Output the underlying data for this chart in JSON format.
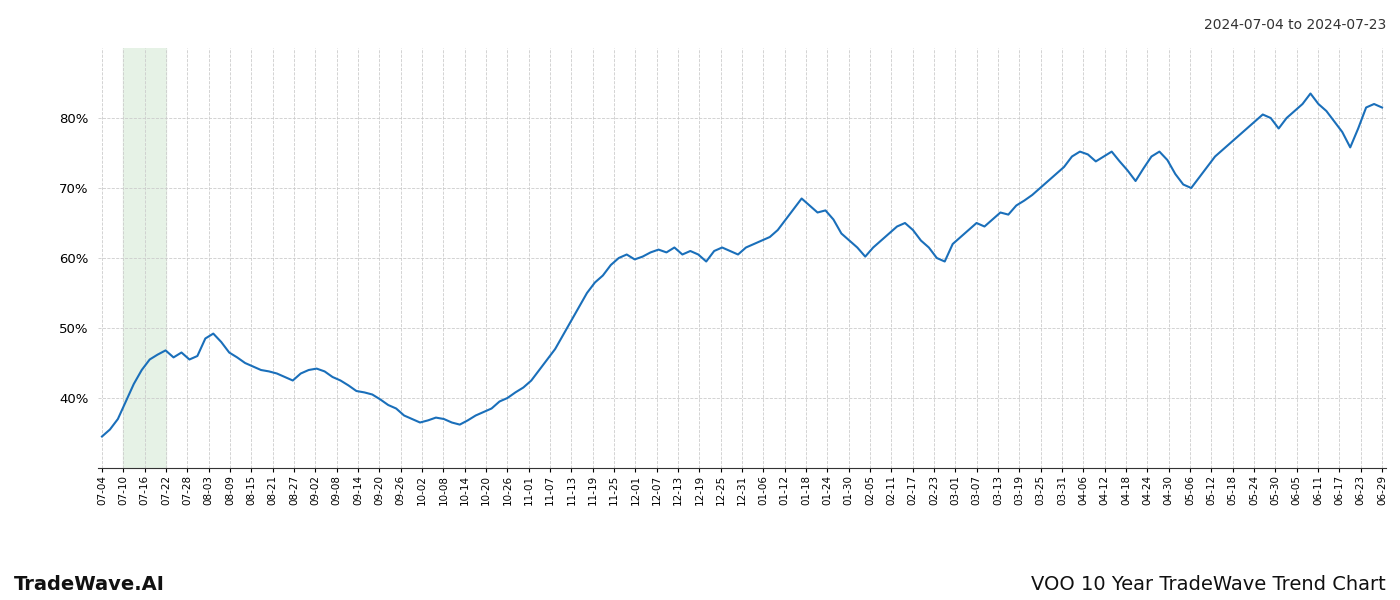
{
  "title_date_range": "2024-07-04 to 2024-07-23",
  "footer_left": "TradeWave.AI",
  "footer_right": "VOO 10 Year TradeWave Trend Chart",
  "line_color": "#1a6fba",
  "line_width": 1.5,
  "background_color": "#ffffff",
  "grid_color": "#cccccc",
  "highlight_color": "#e6f2e6",
  "ylim": [
    30,
    90
  ],
  "yticks": [
    40,
    50,
    60,
    70,
    80
  ],
  "x_labels": [
    "07-04",
    "07-10",
    "07-16",
    "07-22",
    "07-28",
    "08-03",
    "08-09",
    "08-15",
    "08-21",
    "08-27",
    "09-02",
    "09-08",
    "09-14",
    "09-20",
    "09-26",
    "10-02",
    "10-08",
    "10-14",
    "10-20",
    "10-26",
    "11-01",
    "11-07",
    "11-13",
    "11-19",
    "11-25",
    "12-01",
    "12-07",
    "12-13",
    "12-19",
    "12-25",
    "12-31",
    "01-06",
    "01-12",
    "01-18",
    "01-24",
    "01-30",
    "02-05",
    "02-11",
    "02-17",
    "02-23",
    "03-01",
    "03-07",
    "03-13",
    "03-19",
    "03-25",
    "03-31",
    "04-06",
    "04-12",
    "04-18",
    "04-24",
    "04-30",
    "05-06",
    "05-12",
    "05-18",
    "05-24",
    "05-30",
    "06-05",
    "06-11",
    "06-17",
    "06-23",
    "06-29"
  ],
  "y_values": [
    34.5,
    35.5,
    37.0,
    39.5,
    42.0,
    44.0,
    45.5,
    46.2,
    46.8,
    45.8,
    46.5,
    45.5,
    46.0,
    48.5,
    49.2,
    48.0,
    46.5,
    45.8,
    45.0,
    44.5,
    44.0,
    43.8,
    43.5,
    43.0,
    42.5,
    43.5,
    44.0,
    44.2,
    43.8,
    43.0,
    42.5,
    41.8,
    41.0,
    40.8,
    40.5,
    39.8,
    39.0,
    38.5,
    37.5,
    37.0,
    36.5,
    36.8,
    37.2,
    37.0,
    36.5,
    36.2,
    36.8,
    37.5,
    38.0,
    38.5,
    39.5,
    40.0,
    40.8,
    41.5,
    42.5,
    44.0,
    45.5,
    47.0,
    49.0,
    51.0,
    53.0,
    55.0,
    56.5,
    57.5,
    59.0,
    60.0,
    60.5,
    59.8,
    60.2,
    60.8,
    61.2,
    60.8,
    61.5,
    60.5,
    61.0,
    60.5,
    59.5,
    61.0,
    61.5,
    61.0,
    60.5,
    61.5,
    62.0,
    62.5,
    63.0,
    64.0,
    65.5,
    67.0,
    68.5,
    67.5,
    66.5,
    66.8,
    65.5,
    63.5,
    62.5,
    61.5,
    60.2,
    61.5,
    62.5,
    63.5,
    64.5,
    65.0,
    64.0,
    62.5,
    61.5,
    60.0,
    59.5,
    62.0,
    63.0,
    64.0,
    65.0,
    64.5,
    65.5,
    66.5,
    66.2,
    67.5,
    68.2,
    69.0,
    70.0,
    71.0,
    72.0,
    73.0,
    74.5,
    75.2,
    74.8,
    73.8,
    74.5,
    75.2,
    73.8,
    72.5,
    71.0,
    72.8,
    74.5,
    75.2,
    74.0,
    72.0,
    70.5,
    70.0,
    71.5,
    73.0,
    74.5,
    75.5,
    76.5,
    77.5,
    78.5,
    79.5,
    80.5,
    80.0,
    78.5,
    80.0,
    81.0,
    82.0,
    83.5,
    82.0,
    81.0,
    79.5,
    78.0,
    75.8,
    78.5,
    81.5,
    82.0,
    81.5
  ]
}
